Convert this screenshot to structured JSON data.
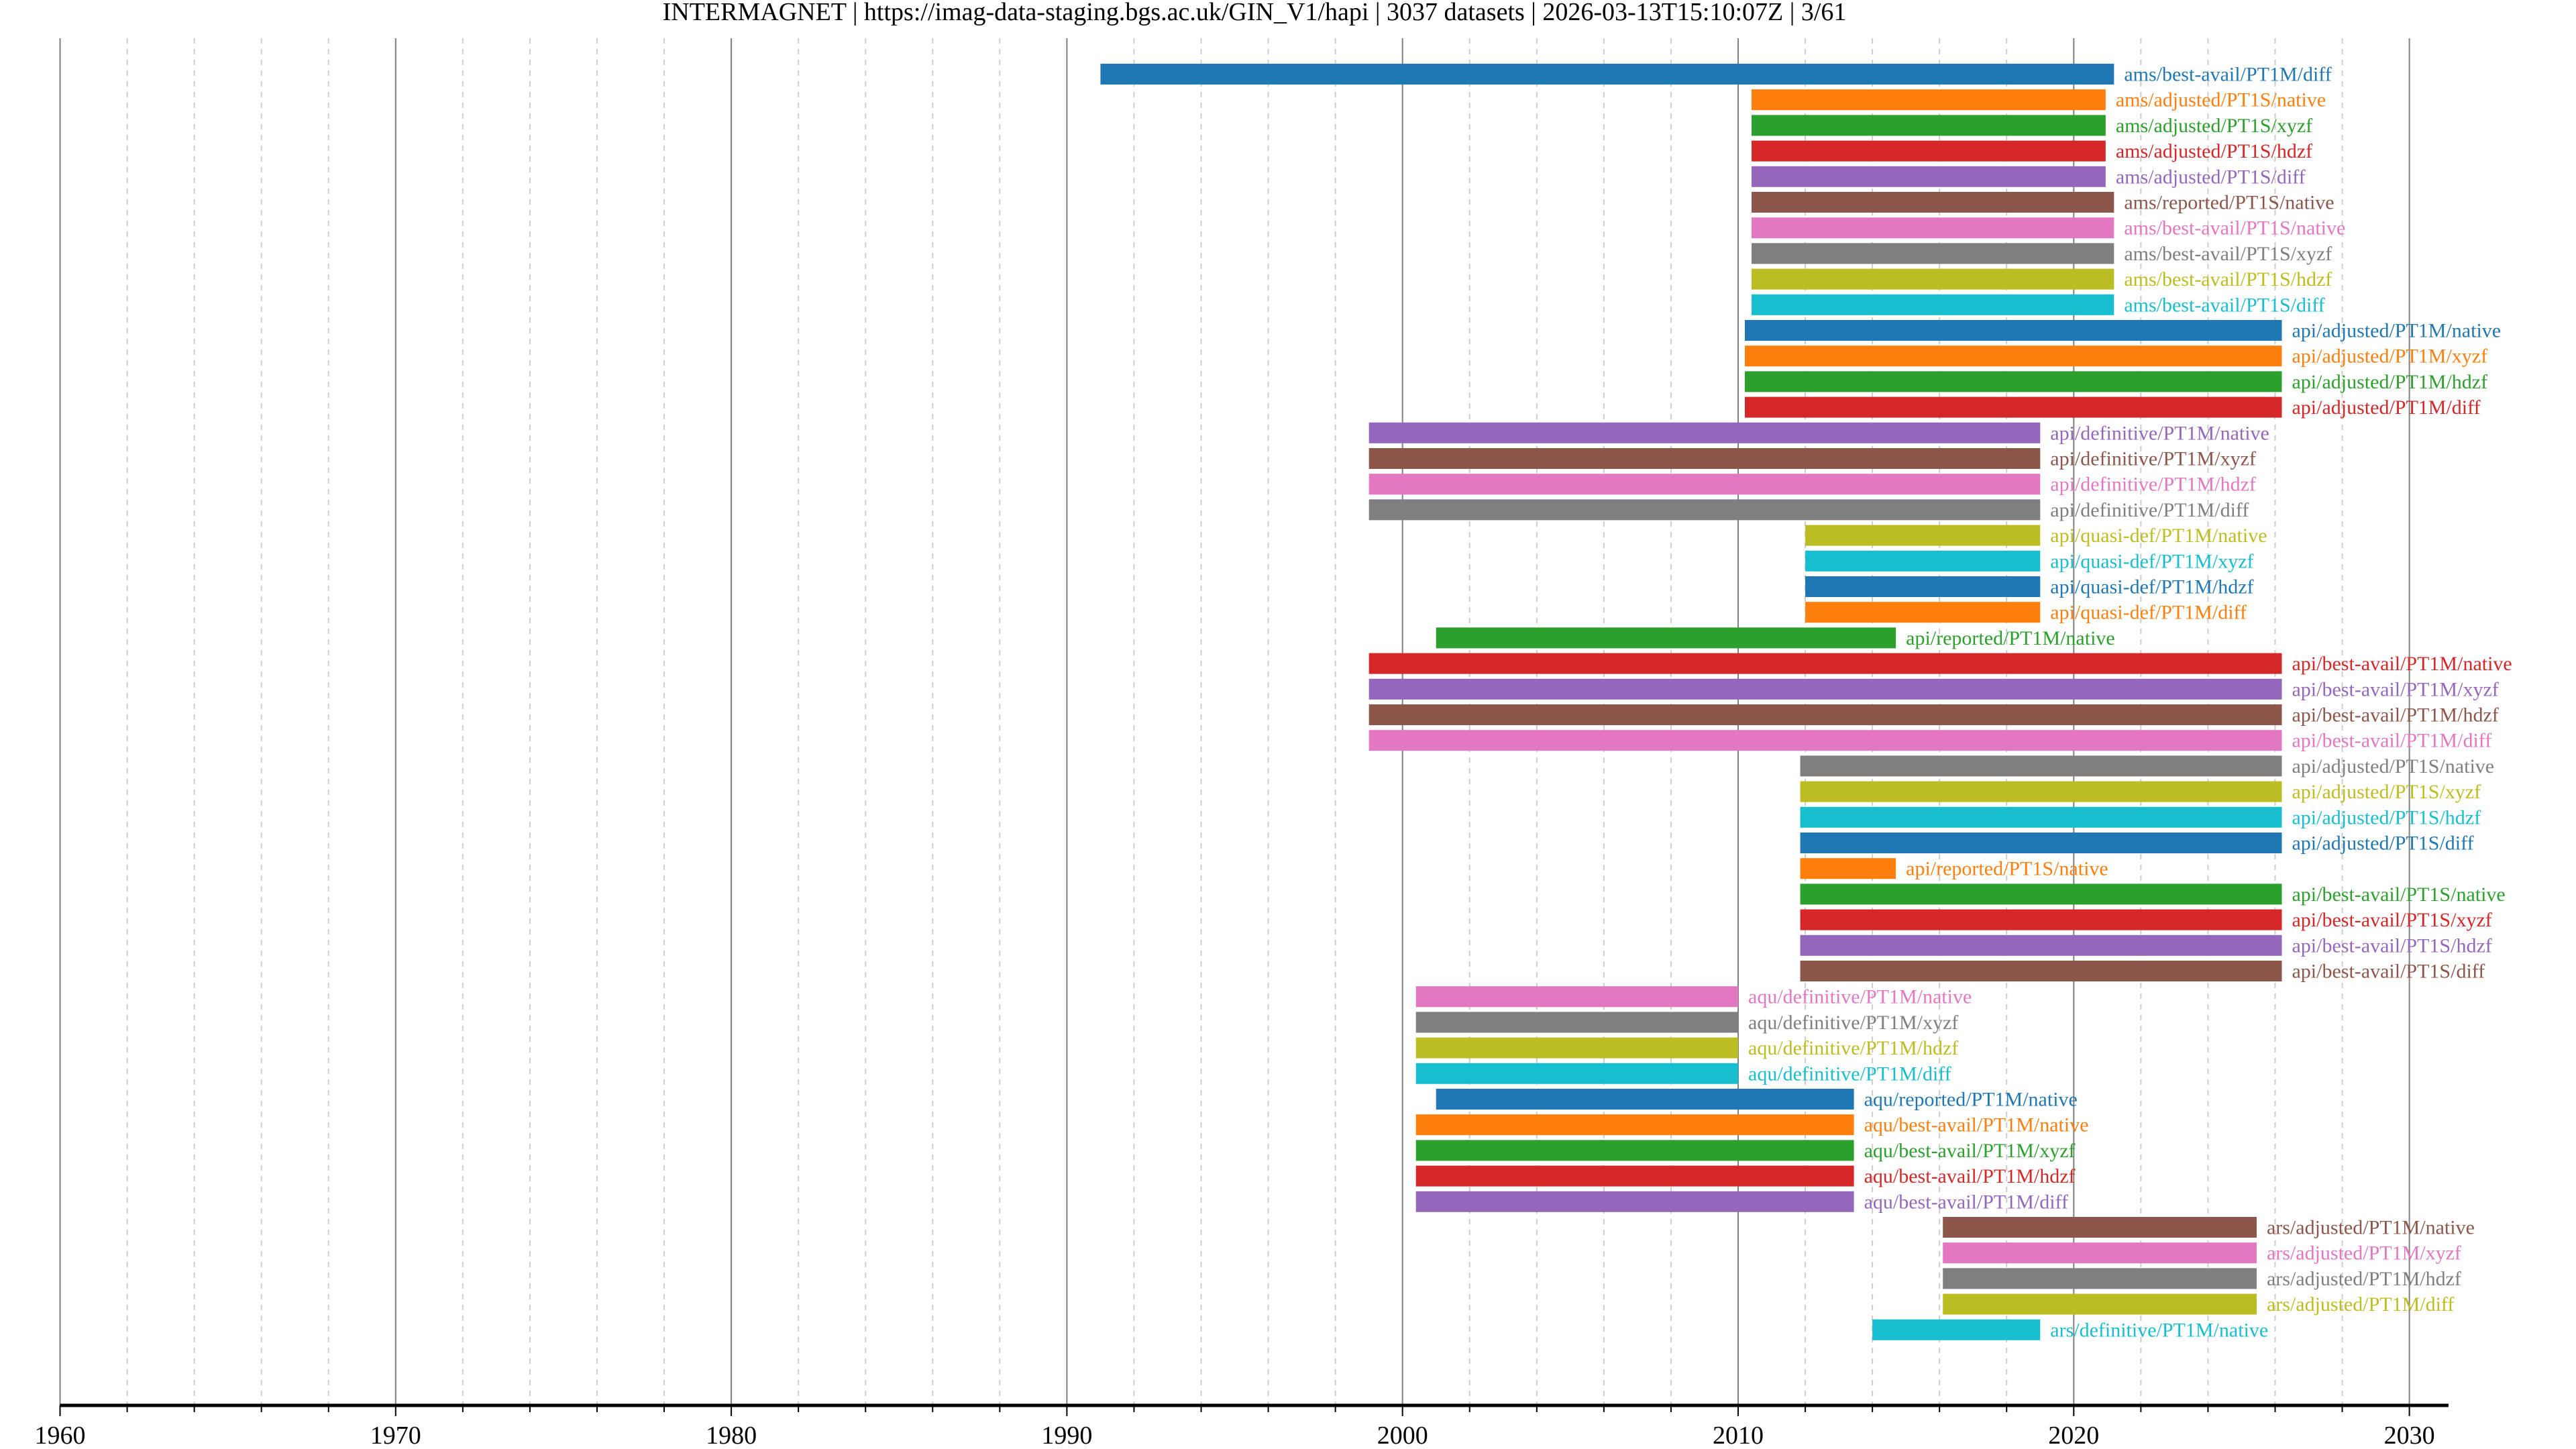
{
  "chart_data": {
    "type": "bar",
    "orientation": "horizontal-gantt",
    "title": "INTERMAGNET | https://imag-data-staging.bgs.ac.uk/GIN_V1/hapi | 3037 datasets | 2026-03-13T15:10:07Z | 3/61",
    "xlabel": "",
    "ylabel": "",
    "xlim": [
      1960,
      2031
    ],
    "xticks": [
      "1960",
      "1970",
      "1980",
      "1990",
      "2000",
      "2010",
      "2020",
      "2030"
    ],
    "grid": true,
    "palette": [
      "#1f77b4",
      "#ff7f0e",
      "#2ca02c",
      "#d62728",
      "#9467bd",
      "#8c564b",
      "#e377c2",
      "#7f7f7f",
      "#bcbd22",
      "#17becf"
    ],
    "series": [
      {
        "name": "ams/best-avail/PT1M/diff",
        "start": 1991.0,
        "end": 2021.2
      },
      {
        "name": "ams/adjusted/PT1S/native",
        "start": 2010.4,
        "end": 2020.95
      },
      {
        "name": "ams/adjusted/PT1S/xyzf",
        "start": 2010.4,
        "end": 2020.95
      },
      {
        "name": "ams/adjusted/PT1S/hdzf",
        "start": 2010.4,
        "end": 2020.95
      },
      {
        "name": "ams/adjusted/PT1S/diff",
        "start": 2010.4,
        "end": 2020.95
      },
      {
        "name": "ams/reported/PT1S/native",
        "start": 2010.4,
        "end": 2021.2
      },
      {
        "name": "ams/best-avail/PT1S/native",
        "start": 2010.4,
        "end": 2021.2
      },
      {
        "name": "ams/best-avail/PT1S/xyzf",
        "start": 2010.4,
        "end": 2021.2
      },
      {
        "name": "ams/best-avail/PT1S/hdzf",
        "start": 2010.4,
        "end": 2021.2
      },
      {
        "name": "ams/best-avail/PT1S/diff",
        "start": 2010.4,
        "end": 2021.2
      },
      {
        "name": "api/adjusted/PT1M/native",
        "start": 2010.2,
        "end": 2026.2
      },
      {
        "name": "api/adjusted/PT1M/xyzf",
        "start": 2010.2,
        "end": 2026.2
      },
      {
        "name": "api/adjusted/PT1M/hdzf",
        "start": 2010.2,
        "end": 2026.2
      },
      {
        "name": "api/adjusted/PT1M/diff",
        "start": 2010.2,
        "end": 2026.2
      },
      {
        "name": "api/definitive/PT1M/native",
        "start": 1999.0,
        "end": 2019.0
      },
      {
        "name": "api/definitive/PT1M/xyzf",
        "start": 1999.0,
        "end": 2019.0
      },
      {
        "name": "api/definitive/PT1M/hdzf",
        "start": 1999.0,
        "end": 2019.0
      },
      {
        "name": "api/definitive/PT1M/diff",
        "start": 1999.0,
        "end": 2019.0
      },
      {
        "name": "api/quasi-def/PT1M/native",
        "start": 2012.0,
        "end": 2019.0
      },
      {
        "name": "api/quasi-def/PT1M/xyzf",
        "start": 2012.0,
        "end": 2019.0
      },
      {
        "name": "api/quasi-def/PT1M/hdzf",
        "start": 2012.0,
        "end": 2019.0
      },
      {
        "name": "api/quasi-def/PT1M/diff",
        "start": 2012.0,
        "end": 2019.0
      },
      {
        "name": "api/reported/PT1M/native",
        "start": 2001.0,
        "end": 2014.7
      },
      {
        "name": "api/best-avail/PT1M/native",
        "start": 1999.0,
        "end": 2026.2
      },
      {
        "name": "api/best-avail/PT1M/xyzf",
        "start": 1999.0,
        "end": 2026.2
      },
      {
        "name": "api/best-avail/PT1M/hdzf",
        "start": 1999.0,
        "end": 2026.2
      },
      {
        "name": "api/best-avail/PT1M/diff",
        "start": 1999.0,
        "end": 2026.2
      },
      {
        "name": "api/adjusted/PT1S/native",
        "start": 2011.85,
        "end": 2026.2
      },
      {
        "name": "api/adjusted/PT1S/xyzf",
        "start": 2011.85,
        "end": 2026.2
      },
      {
        "name": "api/adjusted/PT1S/hdzf",
        "start": 2011.85,
        "end": 2026.2
      },
      {
        "name": "api/adjusted/PT1S/diff",
        "start": 2011.85,
        "end": 2026.2
      },
      {
        "name": "api/reported/PT1S/native",
        "start": 2011.85,
        "end": 2014.7
      },
      {
        "name": "api/best-avail/PT1S/native",
        "start": 2011.85,
        "end": 2026.2
      },
      {
        "name": "api/best-avail/PT1S/xyzf",
        "start": 2011.85,
        "end": 2026.2
      },
      {
        "name": "api/best-avail/PT1S/hdzf",
        "start": 2011.85,
        "end": 2026.2
      },
      {
        "name": "api/best-avail/PT1S/diff",
        "start": 2011.85,
        "end": 2026.2
      },
      {
        "name": "aqu/definitive/PT1M/native",
        "start": 2000.4,
        "end": 2010.0
      },
      {
        "name": "aqu/definitive/PT1M/xyzf",
        "start": 2000.4,
        "end": 2010.0
      },
      {
        "name": "aqu/definitive/PT1M/hdzf",
        "start": 2000.4,
        "end": 2010.0
      },
      {
        "name": "aqu/definitive/PT1M/diff",
        "start": 2000.4,
        "end": 2010.0
      },
      {
        "name": "aqu/reported/PT1M/native",
        "start": 2001.0,
        "end": 2013.45
      },
      {
        "name": "aqu/best-avail/PT1M/native",
        "start": 2000.4,
        "end": 2013.45
      },
      {
        "name": "aqu/best-avail/PT1M/xyzf",
        "start": 2000.4,
        "end": 2013.45
      },
      {
        "name": "aqu/best-avail/PT1M/hdzf",
        "start": 2000.4,
        "end": 2013.45
      },
      {
        "name": "aqu/best-avail/PT1M/diff",
        "start": 2000.4,
        "end": 2013.45
      },
      {
        "name": "ars/adjusted/PT1M/native",
        "start": 2016.1,
        "end": 2025.45
      },
      {
        "name": "ars/adjusted/PT1M/xyzf",
        "start": 2016.1,
        "end": 2025.45
      },
      {
        "name": "ars/adjusted/PT1M/hdzf",
        "start": 2016.1,
        "end": 2025.45
      },
      {
        "name": "ars/adjusted/PT1M/diff",
        "start": 2016.1,
        "end": 2025.45
      },
      {
        "name": "ars/definitive/PT1M/native",
        "start": 2014.0,
        "end": 2019.0
      }
    ]
  }
}
